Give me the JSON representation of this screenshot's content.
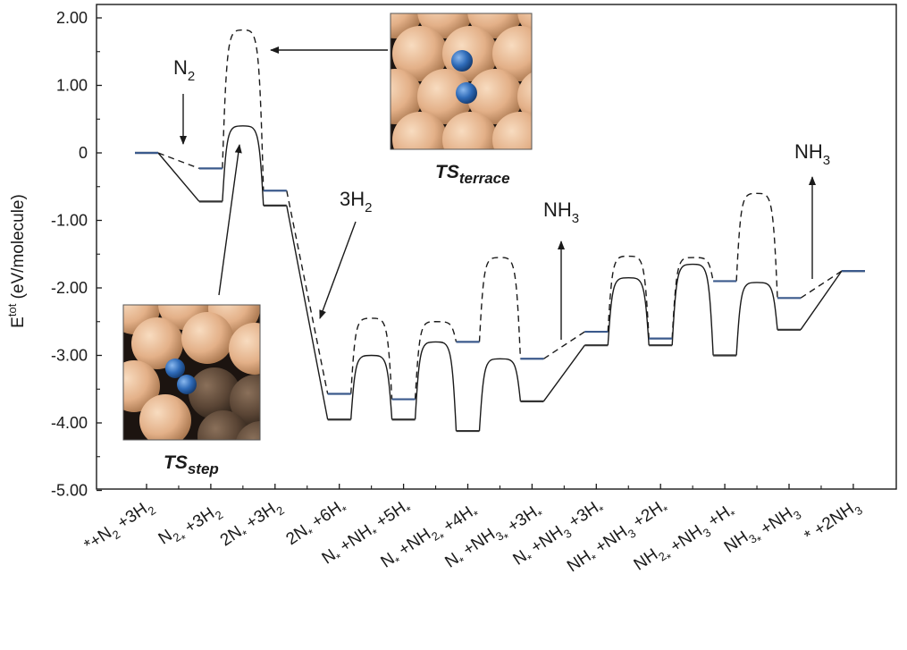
{
  "chart_data": {
    "type": "energy-profile",
    "ylabel": "E",
    "ylabel_sup": "tot",
    "ylabel_unit": " (eV/molecule)",
    "ylim": [
      -5.0,
      2.0
    ],
    "yticks": [
      {
        "value": 2.0,
        "label": "2.00"
      },
      {
        "value": 1.0,
        "label": "1.00"
      },
      {
        "value": 0.0,
        "label": "0"
      },
      {
        "value": -1.0,
        "label": "-1.00"
      },
      {
        "value": -2.0,
        "label": "-2.00"
      },
      {
        "value": -3.0,
        "label": "-3.00"
      },
      {
        "value": -4.0,
        "label": "-4.00"
      },
      {
        "value": -5.0,
        "label": "-5.00"
      }
    ],
    "categories": [
      "*+N2 +3H2",
      "N2* +3H2",
      "2N* +3H2",
      "2N* +6H*",
      "N* +NH* +5H*",
      "N* +NH2* +4H*",
      "N* +NH3* +3H*",
      "N* +NH3 +3H*",
      "NH* +NH3 +2H*",
      "NH2* +NH3 +H*",
      "NH3* +NH3",
      "* +2NH3"
    ],
    "category_labels": [
      [
        {
          "t": "*"
        },
        {
          "t": "+N"
        },
        {
          "t": "2",
          "s": 1
        },
        {
          "t": " +3H"
        },
        {
          "t": "2",
          "s": 1
        }
      ],
      [
        {
          "t": "N"
        },
        {
          "t": "2",
          "s": 1
        },
        {
          "t": "*",
          "s": 1
        },
        {
          "t": " +3H"
        },
        {
          "t": "2",
          "s": 1
        }
      ],
      [
        {
          "t": "2N"
        },
        {
          "t": "*",
          "s": 1
        },
        {
          "t": " +3H"
        },
        {
          "t": "2",
          "s": 1
        }
      ],
      [
        {
          "t": "2N"
        },
        {
          "t": "*",
          "s": 1
        },
        {
          "t": " +6H"
        },
        {
          "t": "*",
          "s": 1
        }
      ],
      [
        {
          "t": "N"
        },
        {
          "t": "*",
          "s": 1
        },
        {
          "t": " +NH"
        },
        {
          "t": "*",
          "s": 1
        },
        {
          "t": " +5H"
        },
        {
          "t": "*",
          "s": 1
        }
      ],
      [
        {
          "t": "N"
        },
        {
          "t": "*",
          "s": 1
        },
        {
          "t": " +NH"
        },
        {
          "t": "2",
          "s": 1
        },
        {
          "t": "*",
          "s": 1
        },
        {
          "t": " +4H"
        },
        {
          "t": "*",
          "s": 1
        }
      ],
      [
        {
          "t": "N"
        },
        {
          "t": "*",
          "s": 1
        },
        {
          "t": " +NH"
        },
        {
          "t": "3",
          "s": 1
        },
        {
          "t": "*",
          "s": 1
        },
        {
          "t": " +3H"
        },
        {
          "t": "*",
          "s": 1
        }
      ],
      [
        {
          "t": "N"
        },
        {
          "t": "*",
          "s": 1
        },
        {
          "t": " +NH"
        },
        {
          "t": "3",
          "s": 1
        },
        {
          "t": " +3H"
        },
        {
          "t": "*",
          "s": 1
        }
      ],
      [
        {
          "t": "NH"
        },
        {
          "t": "*",
          "s": 1
        },
        {
          "t": " +NH"
        },
        {
          "t": "3",
          "s": 1
        },
        {
          "t": " +2H"
        },
        {
          "t": "*",
          "s": 1
        }
      ],
      [
        {
          "t": "NH"
        },
        {
          "t": "2",
          "s": 1
        },
        {
          "t": "*",
          "s": 1
        },
        {
          "t": " +NH"
        },
        {
          "t": "3",
          "s": 1
        },
        {
          "t": " +H"
        },
        {
          "t": "*",
          "s": 1
        }
      ],
      [
        {
          "t": "NH"
        },
        {
          "t": "3",
          "s": 1
        },
        {
          "t": "*",
          "s": 1
        },
        {
          "t": " +NH"
        },
        {
          "t": "3",
          "s": 1
        }
      ],
      [
        {
          "t": "* +2NH"
        },
        {
          "t": "3",
          "s": 1
        }
      ]
    ],
    "series": [
      {
        "name": "step",
        "style": "solid",
        "level_color": "#333333",
        "levels": [
          0.0,
          -0.72,
          -0.78,
          -3.95,
          -3.95,
          -4.12,
          -3.68,
          -2.85,
          -2.85,
          -3.0,
          -2.62,
          -1.75
        ],
        "barriers": [
          {
            "between": [
              1,
              2
            ],
            "peak": 0.4
          },
          {
            "between": [
              3,
              4
            ],
            "peak": -3.0
          },
          {
            "between": [
              4,
              5
            ],
            "peak": -2.8
          },
          {
            "between": [
              5,
              6
            ],
            "peak": -3.05
          },
          {
            "between": [
              7,
              8
            ],
            "peak": -1.85
          },
          {
            "between": [
              8,
              9
            ],
            "peak": -1.65
          },
          {
            "between": [
              9,
              10
            ],
            "peak": -1.92
          }
        ]
      },
      {
        "name": "terrace",
        "style": "dashed",
        "level_color": "#3b5a8c",
        "levels": [
          0.0,
          -0.23,
          -0.56,
          -3.57,
          -3.65,
          -2.8,
          -3.05,
          -2.65,
          -2.75,
          -1.9,
          -2.15,
          -1.75
        ],
        "barriers": [
          {
            "between": [
              1,
              2
            ],
            "peak": 1.82
          },
          {
            "between": [
              3,
              4
            ],
            "peak": -2.45
          },
          {
            "between": [
              4,
              5
            ],
            "peak": -2.5
          },
          {
            "between": [
              5,
              6
            ],
            "peak": -1.55
          },
          {
            "between": [
              7,
              8
            ],
            "peak": -1.53
          },
          {
            "between": [
              8,
              9
            ],
            "peak": -1.55
          },
          {
            "between": [
              9,
              10
            ],
            "peak": -0.6
          }
        ]
      }
    ],
    "annotations": {
      "n2": {
        "text": "N",
        "sub": "2"
      },
      "h2": {
        "text": "3H",
        "sub": "2"
      },
      "nh3_first": {
        "text": "NH",
        "sub": "3"
      },
      "nh3_second": {
        "text": "NH",
        "sub": "3"
      }
    },
    "insets": {
      "terrace": {
        "label": "TS",
        "sub": "terrace"
      },
      "step": {
        "label": "TS",
        "sub": "step"
      }
    }
  },
  "colors": {
    "axis": "#1a1a1a",
    "curve": "#1a1a1a",
    "level_blue": "#3b5a8c",
    "atom_light": "#e8b78f",
    "atom_dark": "#4a3a2e",
    "atom_blue": "#2f6bb8"
  }
}
